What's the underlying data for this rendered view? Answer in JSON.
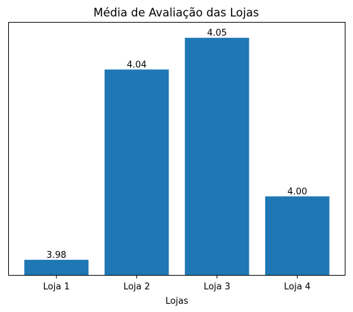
{
  "chart_data": {
    "type": "bar",
    "title": "Média de Avaliação das Lojas",
    "xlabel": "Lojas",
    "ylabel": "",
    "categories": [
      "Loja 1",
      "Loja 2",
      "Loja 3",
      "Loja 4"
    ],
    "values": [
      3.98,
      4.04,
      4.05,
      4.0
    ],
    "value_labels": [
      "3.98",
      "4.04",
      "4.05",
      "4.00"
    ],
    "ylim": [
      3.975,
      4.055
    ],
    "y_ticks_visible": false,
    "grid": false,
    "legend": "none",
    "bar_color": "#1f77b4"
  }
}
